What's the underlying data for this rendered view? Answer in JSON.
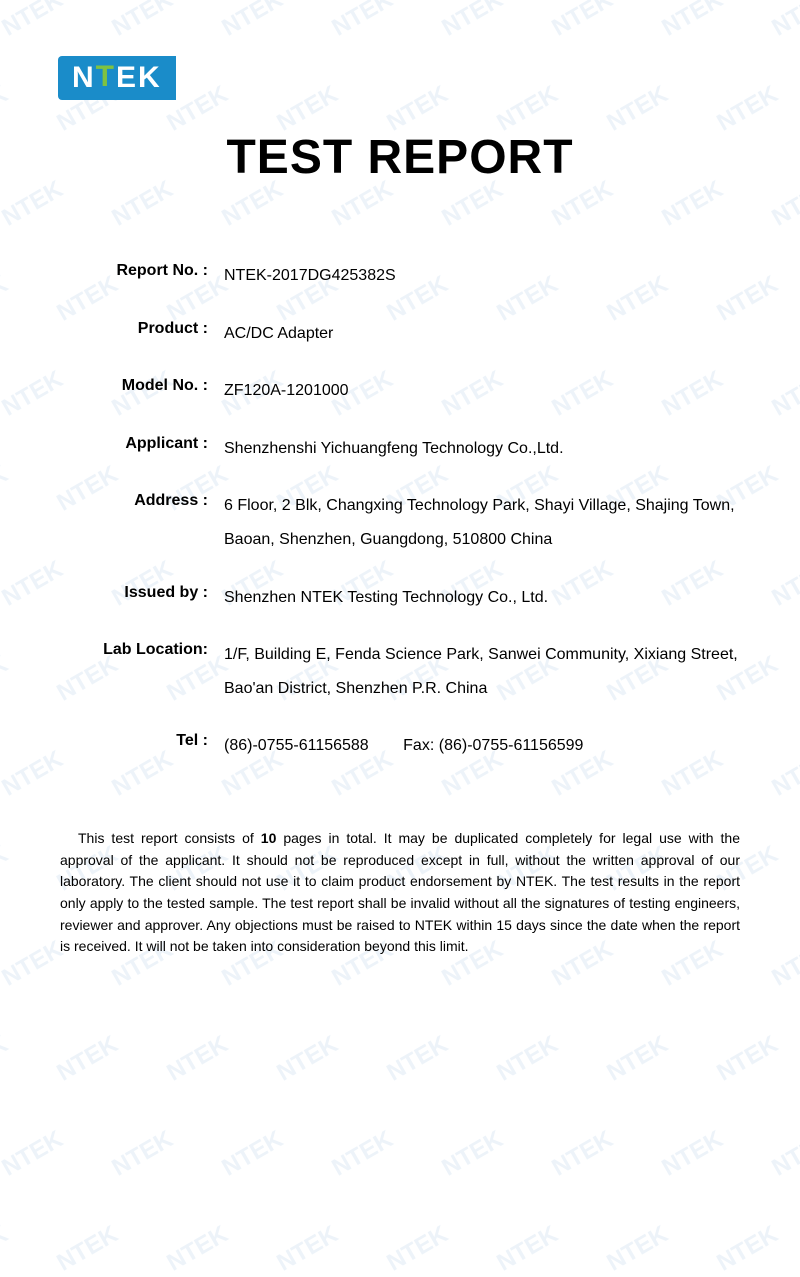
{
  "logo_text_parts": {
    "a": "N",
    "b": "T",
    "c": "EK"
  },
  "title": "TEST REPORT",
  "fields": {
    "report_no": {
      "label": "Report No. :",
      "value": "NTEK-2017DG425382S"
    },
    "product": {
      "label": "Product :",
      "value": "AC/DC Adapter"
    },
    "model_no": {
      "label": "Model No. :",
      "value": "ZF120A-1201000"
    },
    "applicant": {
      "label": "Applicant :",
      "value": "Shenzhenshi Yichuangfeng Technology Co.,Ltd."
    },
    "address": {
      "label": "Address :",
      "value": "6 Floor, 2 Blk, Changxing Technology Park, Shayi Village, Shajing Town, Baoan, Shenzhen, Guangdong, 510800 China"
    },
    "issued_by": {
      "label": "Issued by :",
      "value": "Shenzhen NTEK Testing Technology Co., Ltd."
    },
    "lab": {
      "label": "Lab Location:",
      "value": "1/F, Building E, Fenda Science Park, Sanwei Community, Xixiang Street, Bao'an District, Shenzhen P.R. China"
    },
    "tel": {
      "label": "Tel :",
      "value": "(86)-0755-61156588",
      "fax_label": "Fax:",
      "fax_value": "(86)-0755-61156599"
    }
  },
  "disclaimer": {
    "pre": "This test report consists of ",
    "pages": "10",
    "post": " pages in total. It may be duplicated completely for legal use with the approval of the applicant. It should not be reproduced except in full, without the written approval of our laboratory. The client should not use it to claim product endorsement by NTEK. The test results in the report only apply to the tested sample. The test report shall be invalid without all the signatures of testing engineers, reviewer and approver. Any objections must be raised to NTEK within 15 days since the date when the report is received. It will not be taken into consideration beyond this limit."
  },
  "watermark_text": "NTEK",
  "colors": {
    "logo_bg": "#1a8cc9",
    "logo_arrow": "#7fc241",
    "watermark": "#1a6bb3"
  }
}
